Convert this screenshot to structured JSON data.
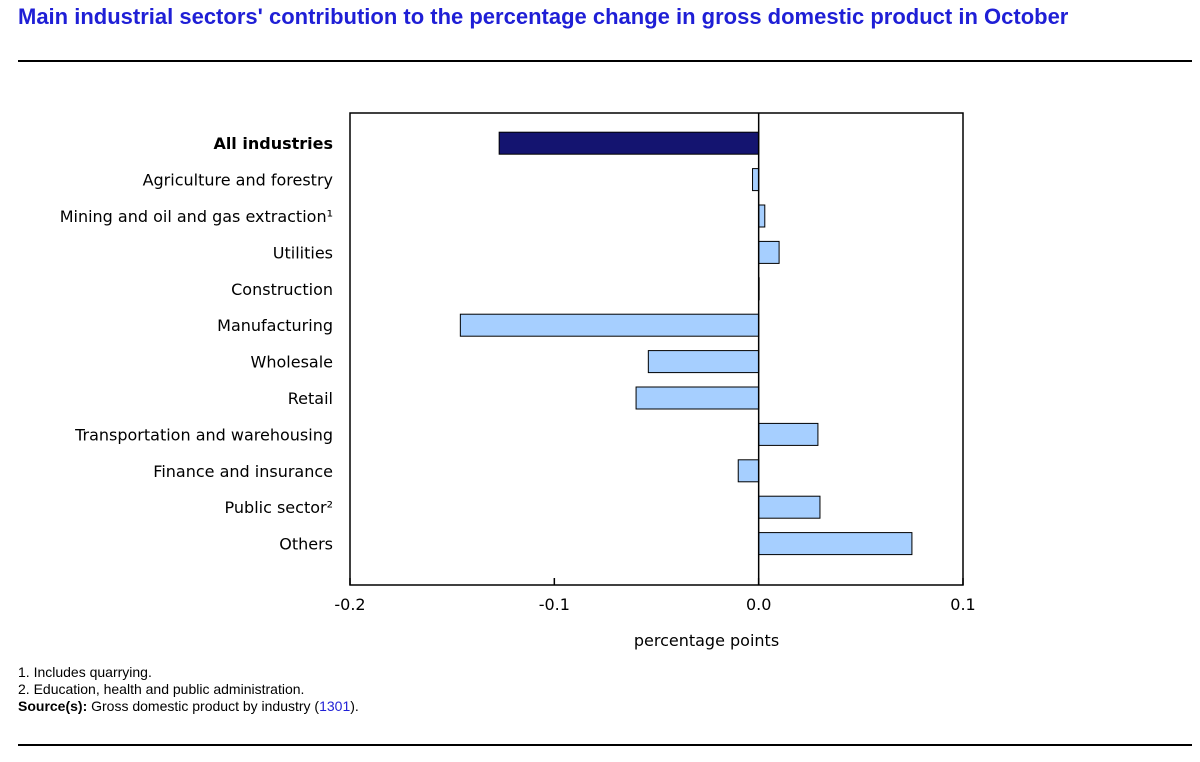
{
  "page": {
    "title": "Main industrial sectors' contribution to the percentage change in gross domestic product in October"
  },
  "chart_data": {
    "type": "bar",
    "orientation": "horizontal",
    "categories": [
      "All industries",
      "Agriculture and forestry",
      "Mining and oil and gas extraction¹",
      "Utilities",
      "Construction",
      "Manufacturing",
      "Wholesale",
      "Retail",
      "Transportation and warehousing",
      "Finance and insurance",
      "Public sector²",
      "Others"
    ],
    "values": [
      -0.127,
      -0.003,
      0.003,
      0.01,
      0.0,
      -0.146,
      -0.054,
      -0.06,
      0.029,
      -0.01,
      0.03,
      0.075
    ],
    "highlight_category": "All industries",
    "xlabel": "percentage points",
    "xlim": [
      -0.2,
      0.1
    ],
    "xticks": [
      -0.2,
      -0.1,
      0.0,
      0.1
    ],
    "xtick_labels": [
      "-0.2",
      "-0.1",
      "0.0",
      "0.1"
    ],
    "grid": false,
    "colors": {
      "highlight": "#141470",
      "bar": "#a6cfff",
      "stroke": "#000000"
    }
  },
  "footnotes": {
    "note1": "1. Includes quarrying.",
    "note2": "2. Education, health and public administration.",
    "source_label": "Source(s):",
    "source_text": " Gross domestic product by industry (",
    "source_link": "1301",
    "source_end": ")."
  }
}
